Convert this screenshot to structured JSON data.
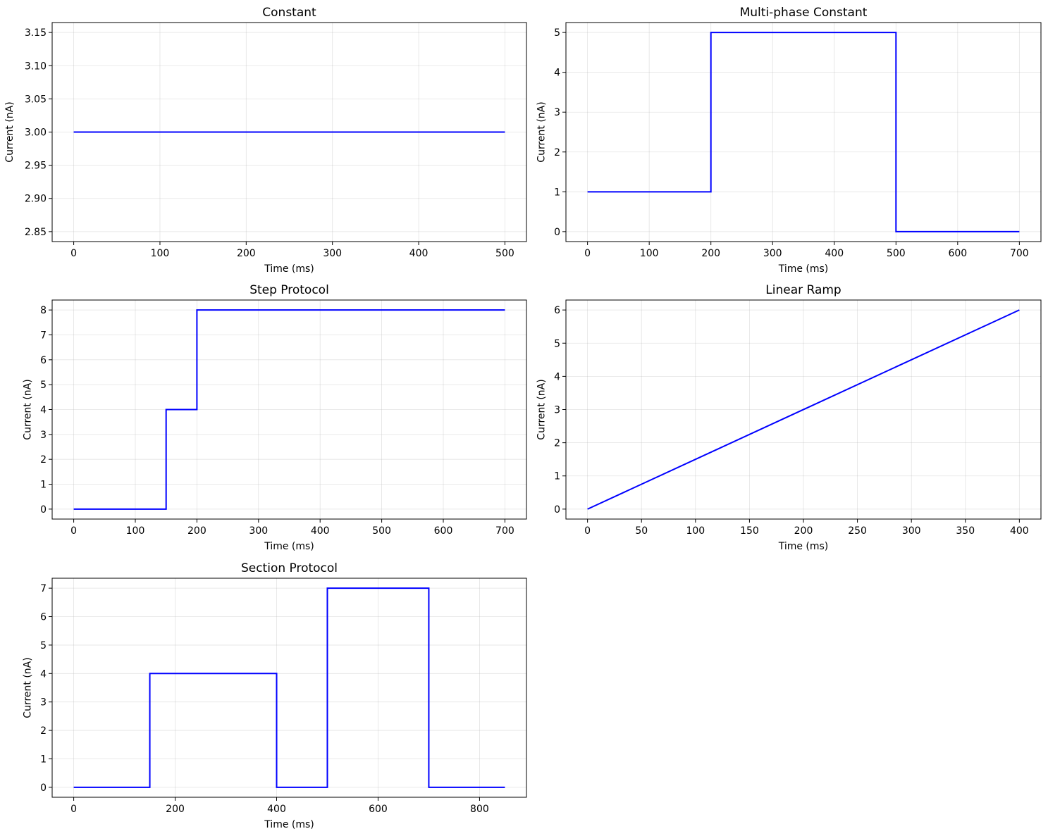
{
  "chart_data": [
    {
      "type": "line",
      "title": "Constant",
      "xlabel": "Time (ms)",
      "ylabel": "Current (nA)",
      "xlim": [
        -25,
        525
      ],
      "ylim": [
        2.835,
        3.165
      ],
      "xticks": [
        0,
        100,
        200,
        300,
        400,
        500
      ],
      "yticks": [
        2.85,
        2.9,
        2.95,
        3.0,
        3.05,
        3.1,
        3.15
      ],
      "xtick_labels": [
        "0",
        "100",
        "200",
        "300",
        "400",
        "500"
      ],
      "ytick_labels": [
        "2.85",
        "2.90",
        "2.95",
        "3.00",
        "3.05",
        "3.10",
        "3.15"
      ],
      "grid": true,
      "series": [
        {
          "color": "#0000ff",
          "x": [
            0,
            500
          ],
          "y": [
            3,
            3
          ]
        }
      ]
    },
    {
      "type": "line",
      "title": "Multi-phase Constant",
      "xlabel": "Time (ms)",
      "ylabel": "Current (nA)",
      "xlim": [
        -35,
        735
      ],
      "ylim": [
        -0.25,
        5.25
      ],
      "xticks": [
        0,
        100,
        200,
        300,
        400,
        500,
        600,
        700
      ],
      "yticks": [
        0,
        1,
        2,
        3,
        4,
        5
      ],
      "xtick_labels": [
        "0",
        "100",
        "200",
        "300",
        "400",
        "500",
        "600",
        "700"
      ],
      "ytick_labels": [
        "0",
        "1",
        "2",
        "3",
        "4",
        "5"
      ],
      "grid": true,
      "series": [
        {
          "color": "#0000ff",
          "x": [
            0,
            200,
            200,
            500,
            500,
            700
          ],
          "y": [
            1,
            1,
            5,
            5,
            0,
            0
          ]
        }
      ]
    },
    {
      "type": "line",
      "title": "Step Protocol",
      "xlabel": "Time (ms)",
      "ylabel": "Current (nA)",
      "xlim": [
        -35,
        735
      ],
      "ylim": [
        -0.4,
        8.4
      ],
      "xticks": [
        0,
        100,
        200,
        300,
        400,
        500,
        600,
        700
      ],
      "yticks": [
        0,
        1,
        2,
        3,
        4,
        5,
        6,
        7,
        8
      ],
      "xtick_labels": [
        "0",
        "100",
        "200",
        "300",
        "400",
        "500",
        "600",
        "700"
      ],
      "ytick_labels": [
        "0",
        "1",
        "2",
        "3",
        "4",
        "5",
        "6",
        "7",
        "8"
      ],
      "grid": true,
      "series": [
        {
          "color": "#0000ff",
          "x": [
            0,
            150,
            150,
            200,
            200,
            700
          ],
          "y": [
            0,
            0,
            4,
            4,
            8,
            8
          ]
        }
      ]
    },
    {
      "type": "line",
      "title": "Linear Ramp",
      "xlabel": "Time (ms)",
      "ylabel": "Current (nA)",
      "xlim": [
        -20,
        420
      ],
      "ylim": [
        -0.3,
        6.3
      ],
      "xticks": [
        0,
        50,
        100,
        150,
        200,
        250,
        300,
        350,
        400
      ],
      "yticks": [
        0,
        1,
        2,
        3,
        4,
        5,
        6
      ],
      "xtick_labels": [
        "0",
        "50",
        "100",
        "150",
        "200",
        "250",
        "300",
        "350",
        "400"
      ],
      "ytick_labels": [
        "0",
        "1",
        "2",
        "3",
        "4",
        "5",
        "6"
      ],
      "grid": true,
      "series": [
        {
          "color": "#0000ff",
          "x": [
            0,
            400
          ],
          "y": [
            0,
            6
          ]
        }
      ]
    },
    {
      "type": "line",
      "title": "Section Protocol",
      "xlabel": "Time (ms)",
      "ylabel": "Current (nA)",
      "xlim": [
        -42.5,
        892.5
      ],
      "ylim": [
        -0.35,
        7.35
      ],
      "xticks": [
        0,
        200,
        400,
        600,
        800
      ],
      "yticks": [
        0,
        1,
        2,
        3,
        4,
        5,
        6,
        7
      ],
      "xtick_labels": [
        "0",
        "200",
        "400",
        "600",
        "800"
      ],
      "ytick_labels": [
        "0",
        "1",
        "2",
        "3",
        "4",
        "5",
        "6",
        "7"
      ],
      "grid": true,
      "series": [
        {
          "color": "#0000ff",
          "x": [
            0,
            150,
            150,
            400,
            400,
            500,
            500,
            700,
            700,
            850
          ],
          "y": [
            0,
            0,
            4,
            4,
            0,
            0,
            7,
            7,
            0,
            0
          ]
        }
      ]
    }
  ]
}
